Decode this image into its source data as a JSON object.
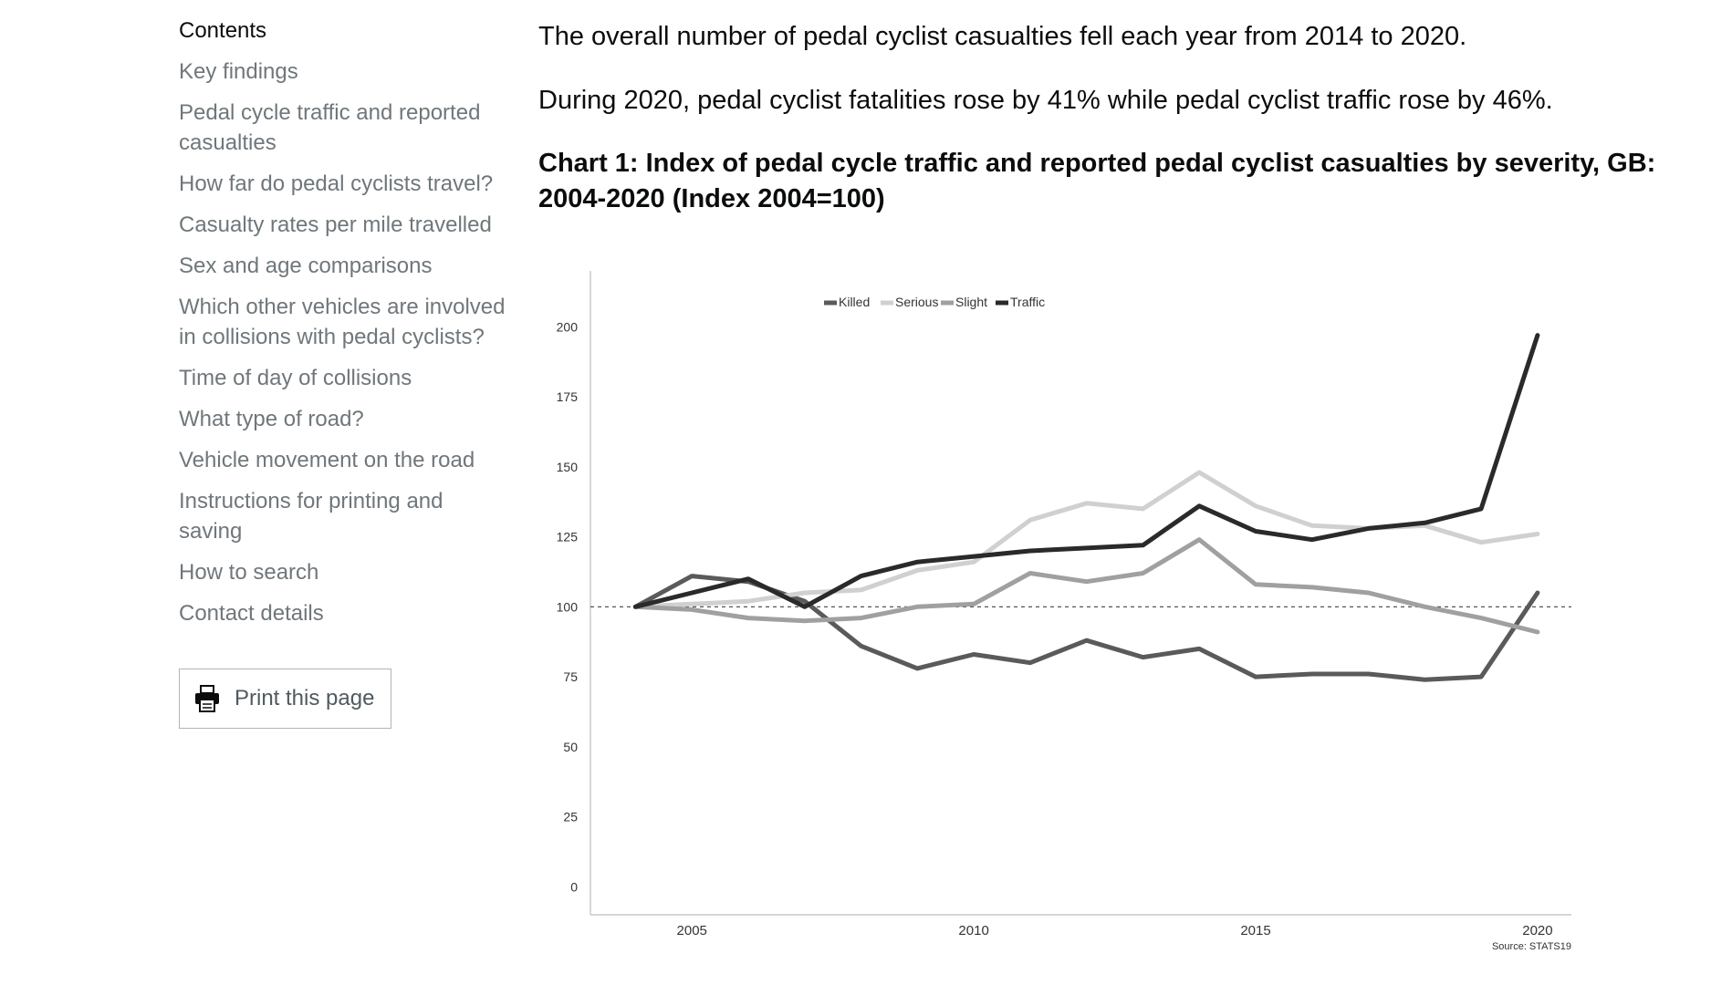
{
  "sidebar": {
    "contents_heading": "Contents",
    "items": [
      {
        "label": "Key findings"
      },
      {
        "label": "Pedal cycle traffic and reported casualties"
      },
      {
        "label": "How far do pedal cyclists travel?"
      },
      {
        "label": "Casualty rates per mile travelled"
      },
      {
        "label": "Sex and age comparisons"
      },
      {
        "label": "Which other vehicles are involved in collisions with pedal cyclists?"
      },
      {
        "label": "Time of day of collisions"
      },
      {
        "label": "What type of road?"
      },
      {
        "label": "Vehicle movement on the road"
      },
      {
        "label": "Instructions for printing and saving"
      },
      {
        "label": "How to search"
      },
      {
        "label": "Contact details"
      }
    ],
    "print_button": {
      "label": "Print this page",
      "icon": "printer-icon"
    }
  },
  "main": {
    "paragraphs": [
      "The overall number of pedal cyclist casualties fell each year from 2014 to 2020.",
      "During 2020, pedal cyclist fatalities rose by 41% while pedal cyclist traffic rose by 46%."
    ],
    "chart_title": "Chart 1: Index of pedal cycle traffic and reported pedal cyclist casualties by severity, GB: 2004-2020 (Index 2004=100)"
  },
  "chart_data": {
    "type": "line",
    "title": "Chart 1: Index of pedal cycle traffic and reported pedal cyclist casualties by severity, GB: 2004-2020 (Index 2004=100)",
    "xlabel": "",
    "ylabel": "",
    "x": [
      2004,
      2005,
      2006,
      2007,
      2008,
      2009,
      2010,
      2011,
      2012,
      2013,
      2014,
      2015,
      2016,
      2017,
      2018,
      2019,
      2020
    ],
    "xticks": [
      "2005",
      "2010",
      "2015",
      "2020"
    ],
    "yticks": [
      "0",
      "25",
      "50",
      "75",
      "100",
      "125",
      "150",
      "175",
      "200"
    ],
    "xlim": [
      2003.2,
      2020.6
    ],
    "ylim": [
      -10,
      220
    ],
    "reference_line": 100,
    "legend_position": "top-center",
    "grid": false,
    "source": "Source: STATS19",
    "series": [
      {
        "name": "Killed",
        "color": "#5a5a5a",
        "values": [
          100,
          111,
          109,
          102,
          86,
          78,
          83,
          80,
          88,
          82,
          85,
          75,
          76,
          76,
          74,
          75,
          105
        ]
      },
      {
        "name": "Serious",
        "color": "#d0d0d0",
        "values": [
          100,
          101,
          102,
          105,
          106,
          113,
          116,
          131,
          137,
          135,
          148,
          136,
          129,
          128,
          129,
          123,
          126
        ]
      },
      {
        "name": "Slight",
        "color": "#a0a0a0",
        "values": [
          100,
          99,
          96,
          95,
          96,
          100,
          101,
          112,
          109,
          112,
          124,
          108,
          107,
          105,
          100,
          96,
          91
        ]
      },
      {
        "name": "Traffic",
        "color": "#2a2a2a",
        "values": [
          100,
          105,
          110,
          100,
          111,
          116,
          118,
          120,
          121,
          122,
          136,
          127,
          124,
          128,
          130,
          135,
          197
        ]
      }
    ]
  }
}
